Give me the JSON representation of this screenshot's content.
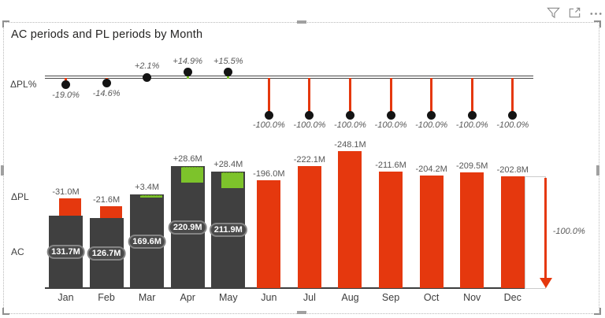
{
  "title": "AC periods and PL periods by Month",
  "header": {
    "icons": [
      {
        "name": "filter-icon"
      },
      {
        "name": "focus-mode-icon"
      },
      {
        "name": "more-options-icon"
      }
    ]
  },
  "row_labels": {
    "delta_pl_pct": "ΔPL%",
    "delta_pl": "ΔPL",
    "ac": "AC"
  },
  "chart_data": {
    "type": "bar",
    "title": "AC periods and PL periods by Month",
    "xlabel": "Month",
    "unit": "M",
    "grid": false,
    "legend_position": "none",
    "categories": [
      "Jan",
      "Feb",
      "Mar",
      "Apr",
      "May",
      "Jun",
      "Jul",
      "Aug",
      "Sep",
      "Oct",
      "Nov",
      "Dec"
    ],
    "series": [
      {
        "name": "AC",
        "values": [
          131.7,
          126.7,
          169.6,
          220.9,
          211.9,
          null,
          null,
          null,
          null,
          null,
          null,
          null
        ]
      },
      {
        "name": "PL",
        "values": [
          162.7,
          148.3,
          166.2,
          192.3,
          183.5,
          196.0,
          222.1,
          248.1,
          211.6,
          204.2,
          209.5,
          202.8
        ]
      },
      {
        "name": "ΔPL",
        "values": [
          -31.0,
          -21.6,
          3.4,
          28.6,
          28.4,
          -196.0,
          -222.1,
          -248.1,
          -211.6,
          -204.2,
          -209.5,
          -202.8
        ]
      },
      {
        "name": "ΔPL%",
        "values": [
          -19.0,
          -14.6,
          2.1,
          14.9,
          15.5,
          -100.0,
          -100.0,
          -100.0,
          -100.0,
          -100.0,
          -100.0,
          -100.0
        ]
      }
    ],
    "labels": {
      "variance": [
        "-31.0M",
        "-21.6M",
        "+3.4M",
        "+28.6M",
        "+28.4M",
        "-196.0M",
        "-222.1M",
        "-248.1M",
        "-211.6M",
        "-204.2M",
        "-209.5M",
        "-202.8M"
      ],
      "ac": [
        "131.7M",
        "126.7M",
        "169.6M",
        "220.9M",
        "211.9M",
        null,
        null,
        null,
        null,
        null,
        null,
        null
      ],
      "pct": [
        "-19.0%",
        "-14.6%",
        "+2.1%",
        "+14.9%",
        "+15.5%",
        "-100.0%",
        "-100.0%",
        "-100.0%",
        "-100.0%",
        "-100.0%",
        "-100.0%",
        "-100.0%"
      ],
      "total_pct": "-100.0%"
    },
    "colors": {
      "ac_bar": "#404040",
      "negative": "#e5380e",
      "positive": "#7dc32b",
      "marker": "#141414",
      "value_label": "#555555",
      "pct_label": "#595959"
    }
  }
}
